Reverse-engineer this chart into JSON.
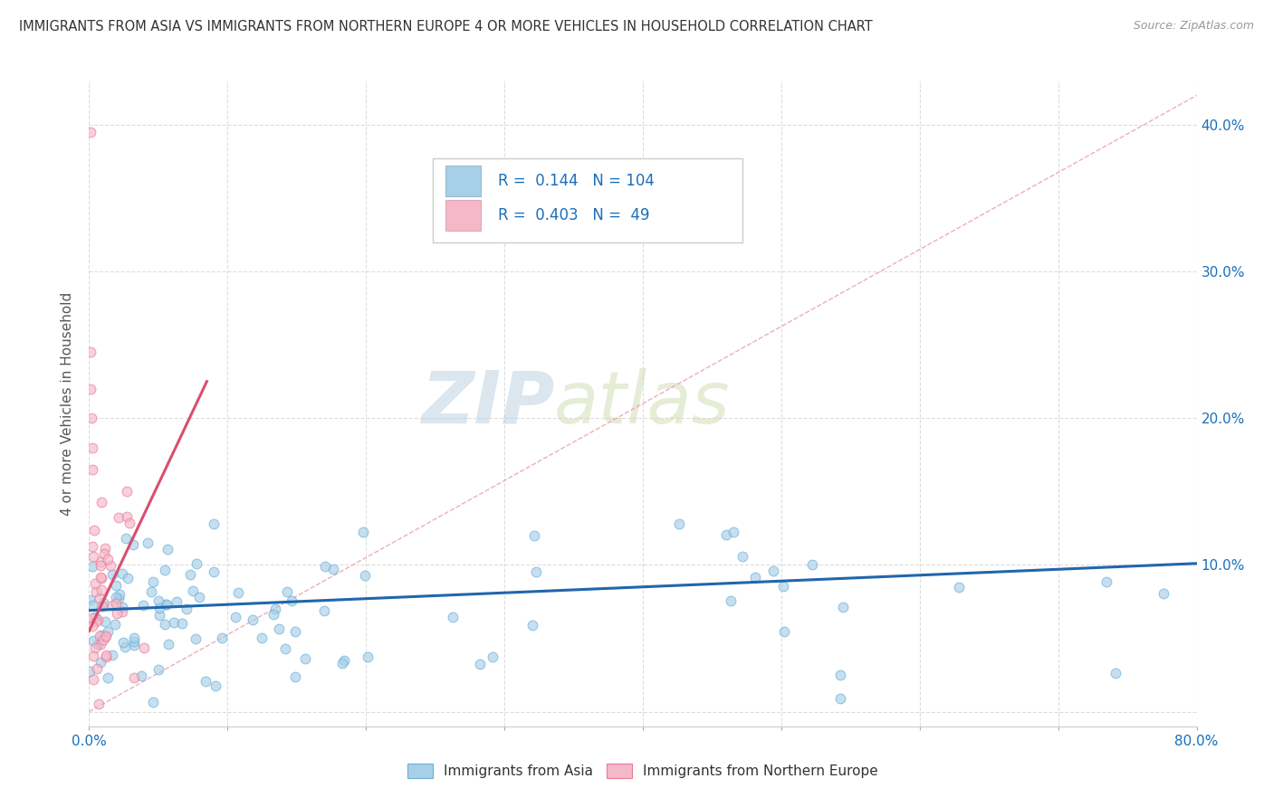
{
  "title": "IMMIGRANTS FROM ASIA VS IMMIGRANTS FROM NORTHERN EUROPE 4 OR MORE VEHICLES IN HOUSEHOLD CORRELATION CHART",
  "source": "Source: ZipAtlas.com",
  "ylabel": "4 or more Vehicles in Household",
  "xlim": [
    0.0,
    0.8
  ],
  "ylim": [
    -0.01,
    0.43
  ],
  "xticks": [
    0.0,
    0.1,
    0.2,
    0.3,
    0.4,
    0.5,
    0.6,
    0.7,
    0.8
  ],
  "yticks": [
    0.0,
    0.1,
    0.2,
    0.3,
    0.4
  ],
  "xtick_labels_show": [
    "0.0%",
    "",
    "",
    "",
    "",
    "",
    "",
    "",
    "80.0%"
  ],
  "yticklabels_right": [
    "",
    "10.0%",
    "20.0%",
    "30.0%",
    "40.0%"
  ],
  "color_asia": "#a8cfe8",
  "color_asia_edge": "#6baed6",
  "color_northern_europe": "#f4b8c8",
  "color_northern_europe_edge": "#e87a99",
  "color_asia_line": "#2166ac",
  "color_northern_europe_line": "#d94f6e",
  "color_diag_line": "#e8a0b0",
  "R_asia": 0.144,
  "N_asia": 104,
  "R_northern": 0.403,
  "N_northern": 49,
  "watermark_zip": "ZIP",
  "watermark_atlas": "atlas",
  "legend_label_asia": "Immigrants from Asia",
  "legend_label_northern": "Immigrants from Northern Europe",
  "background_color": "#ffffff",
  "grid_color": "#dddddd",
  "asia_trend_x0": 0.0,
  "asia_trend_y0": 0.069,
  "asia_trend_x1": 0.8,
  "asia_trend_y1": 0.101,
  "north_trend_x0": 0.0,
  "north_trend_y0": 0.055,
  "north_trend_x1": 0.085,
  "north_trend_y1": 0.225
}
